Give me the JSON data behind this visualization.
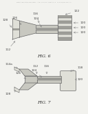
{
  "bg_color": "#f2f2ee",
  "header_text": "Patent Application Publication   Aug. 23, 2012  Sheet 4 of 8   US 2012/0213317 A1",
  "fig6_label": "FIG. 6",
  "fig7_label": "FIG. 7",
  "line_color": "#888888",
  "text_color": "#444444",
  "shape_fill": "#c8c8c0",
  "shape_fill2": "#e0e0d8",
  "shape_stroke": "#666666",
  "stripe_color": "#a0a09a",
  "stripe_dark": "#787872"
}
